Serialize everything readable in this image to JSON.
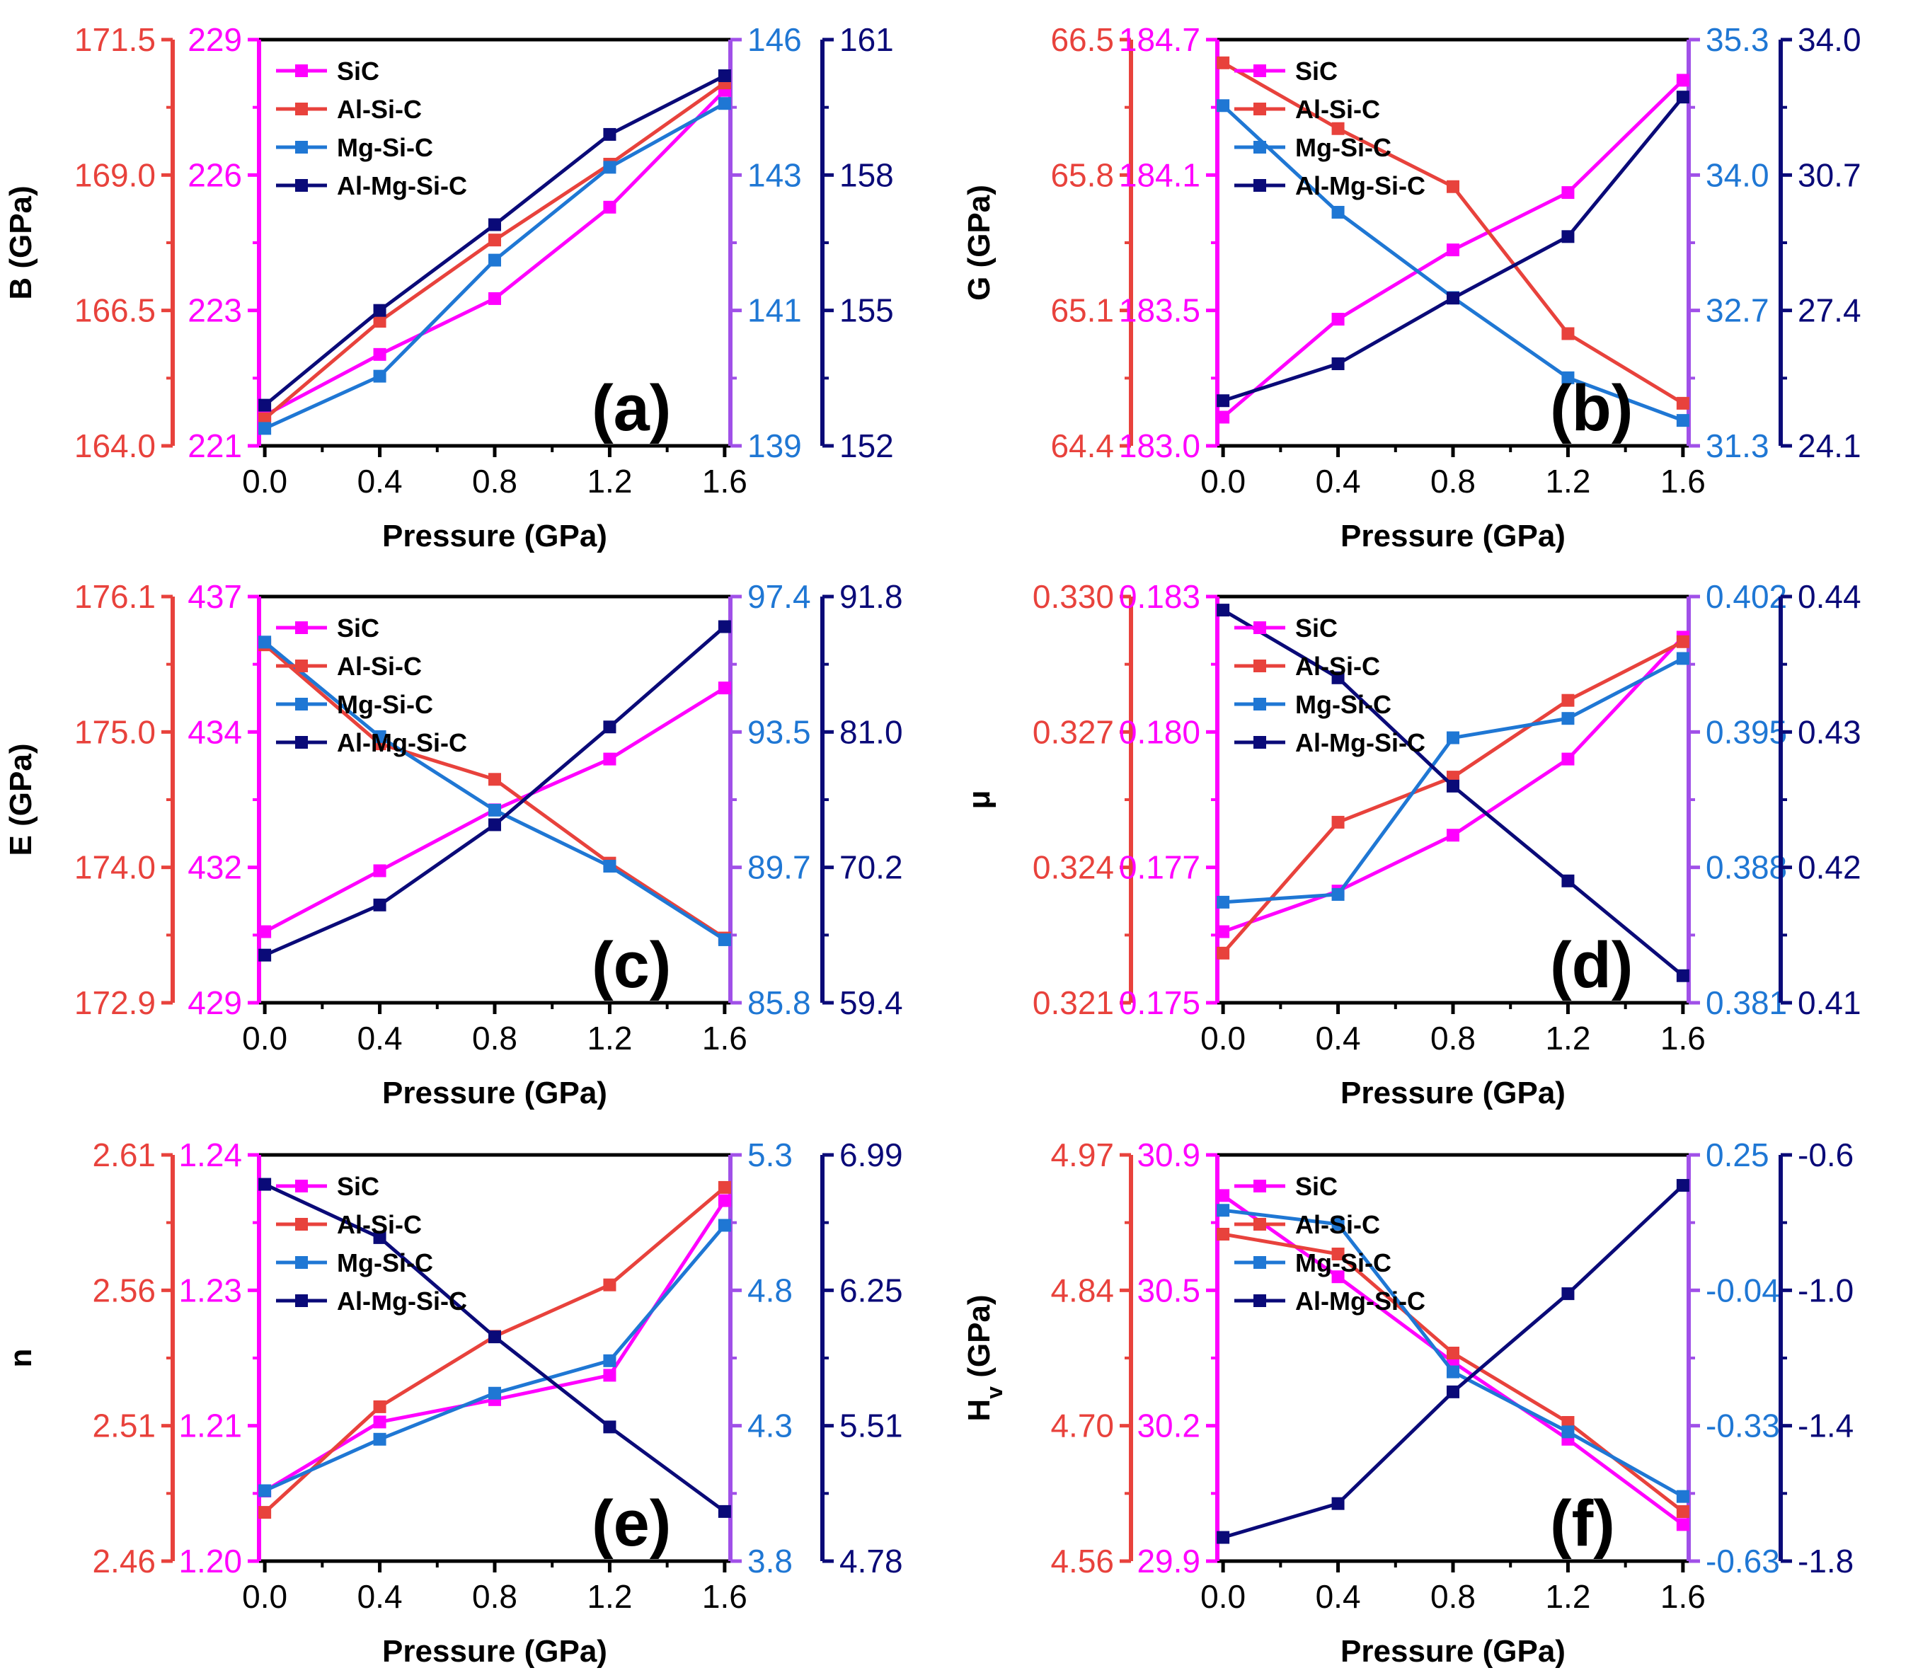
{
  "figure": {
    "colors": {
      "red": "#e8423c",
      "magenta": "#ff00ff",
      "blue": "#1f77d4",
      "navy": "#0a0a78",
      "purple": "#a050e8",
      "black": "#000000"
    },
    "pressure_values": [
      0.0,
      0.4,
      0.8,
      1.2,
      1.6
    ],
    "x_ticks": [
      "0.0",
      "0.4",
      "0.8",
      "1.2",
      "1.6"
    ],
    "x_label": "Pressure (GPa)",
    "legend_labels": [
      "SiC",
      "Al-Si-C",
      "Mg-Si-C",
      "Al-Mg-Si-C"
    ]
  },
  "chart_data": [
    {
      "type": "line",
      "panel": "(a)",
      "ylabel": "B (GPa)",
      "x": [
        0.0,
        0.4,
        0.8,
        1.2,
        1.6
      ],
      "axes": [
        {
          "series": "Al-Si-C",
          "color": "red",
          "range": [
            164.0,
            171.5
          ],
          "ticks": [
            "164.0",
            "166.5",
            "169.0",
            "171.5"
          ]
        },
        {
          "series": "SiC",
          "color": "magenta",
          "range": [
            221,
            229
          ],
          "ticks": [
            "221",
            "223",
            "226",
            "229"
          ]
        },
        {
          "series": "Mg-Si-C",
          "color": "blue",
          "range": [
            139,
            146
          ],
          "ticks": [
            "139",
            "141",
            "143",
            "146"
          ]
        },
        {
          "series": "Al-Mg-Si-C",
          "color": "navy",
          "range": [
            152,
            161
          ],
          "ticks": [
            "152",
            "155",
            "158",
            "161"
          ]
        }
      ],
      "series": [
        {
          "name": "SiC",
          "color": "magenta",
          "values": [
            221.6,
            222.8,
            223.9,
            225.7,
            228.0
          ]
        },
        {
          "name": "Al-Si-C",
          "color": "red",
          "values": [
            164.5,
            166.3,
            167.8,
            169.2,
            170.7
          ]
        },
        {
          "name": "Mg-Si-C",
          "color": "blue",
          "values": [
            139.3,
            140.2,
            142.2,
            143.8,
            144.9
          ]
        },
        {
          "name": "Al-Mg-Si-C",
          "color": "navy",
          "values": [
            152.9,
            155.0,
            156.9,
            158.9,
            160.2
          ]
        }
      ]
    },
    {
      "type": "line",
      "panel": "(b)",
      "ylabel": "G (GPa)",
      "x": [
        0.0,
        0.4,
        0.8,
        1.2,
        1.6
      ],
      "axes": [
        {
          "series": "Al-Si-C",
          "color": "red",
          "range": [
            64.4,
            66.5
          ],
          "ticks": [
            "64.4",
            "65.1",
            "65.8",
            "66.5"
          ]
        },
        {
          "series": "SiC",
          "color": "magenta",
          "range": [
            183.0,
            184.7
          ],
          "ticks": [
            "183.0",
            "183.5",
            "184.1",
            "184.7"
          ]
        },
        {
          "series": "Mg-Si-C",
          "color": "blue",
          "range": [
            31.3,
            35.3
          ],
          "ticks": [
            "31.3",
            "32.7",
            "34.0",
            "35.3"
          ]
        },
        {
          "series": "Al-Mg-Si-C",
          "color": "navy",
          "range": [
            24.1,
            34.0
          ],
          "ticks": [
            "24.1",
            "27.4",
            "30.7",
            "34.0"
          ]
        }
      ],
      "series": [
        {
          "name": "SiC",
          "color": "magenta",
          "values": [
            183.12,
            183.53,
            183.82,
            184.06,
            184.53
          ]
        },
        {
          "name": "Al-Si-C",
          "color": "red",
          "values": [
            66.38,
            66.04,
            65.74,
            64.98,
            64.62
          ]
        },
        {
          "name": "Mg-Si-C",
          "color": "blue",
          "values": [
            34.65,
            33.6,
            32.76,
            31.97,
            31.55
          ]
        },
        {
          "name": "Al-Mg-Si-C",
          "color": "navy",
          "values": [
            25.2,
            26.1,
            27.7,
            29.2,
            32.6
          ]
        }
      ]
    },
    {
      "type": "line",
      "panel": "(c)",
      "ylabel": "E (GPa)",
      "x": [
        0.0,
        0.4,
        0.8,
        1.2,
        1.6
      ],
      "axes": [
        {
          "series": "Al-Si-C",
          "color": "red",
          "range": [
            172.9,
            176.1
          ],
          "ticks": [
            "172.9",
            "174.0",
            "175.0",
            "176.1"
          ]
        },
        {
          "series": "SiC",
          "color": "magenta",
          "range": [
            429,
            437
          ],
          "ticks": [
            "429",
            "432",
            "434",
            "437"
          ]
        },
        {
          "series": "Mg-Si-C",
          "color": "blue",
          "range": [
            85.8,
            97.4
          ],
          "ticks": [
            "85.8",
            "89.7",
            "93.5",
            "97.4"
          ]
        },
        {
          "series": "Al-Mg-Si-C",
          "color": "navy",
          "range": [
            59.4,
            91.8
          ],
          "ticks": [
            "59.4",
            "70.2",
            "81.0",
            "91.8"
          ]
        }
      ],
      "series": [
        {
          "name": "SiC",
          "color": "magenta",
          "values": [
            430.4,
            431.6,
            432.8,
            433.8,
            435.2
          ]
        },
        {
          "name": "Al-Si-C",
          "color": "red",
          "values": [
            175.72,
            174.94,
            174.66,
            174.0,
            173.41
          ]
        },
        {
          "name": "Mg-Si-C",
          "color": "blue",
          "values": [
            96.1,
            93.4,
            91.3,
            89.7,
            87.6
          ]
        },
        {
          "name": "Al-Mg-Si-C",
          "color": "navy",
          "values": [
            63.2,
            67.2,
            73.6,
            81.4,
            89.4
          ]
        }
      ]
    },
    {
      "type": "line",
      "panel": "(d)",
      "ylabel": "μ",
      "x": [
        0.0,
        0.4,
        0.8,
        1.2,
        1.6
      ],
      "axes": [
        {
          "series": "Al-Si-C",
          "color": "red",
          "range": [
            0.321,
            0.33
          ],
          "ticks": [
            "0.321",
            "0.324",
            "0.327",
            "0.330"
          ]
        },
        {
          "series": "SiC",
          "color": "magenta",
          "range": [
            0.175,
            0.183
          ],
          "ticks": [
            "0.175",
            "0.177",
            "0.180",
            "0.183"
          ]
        },
        {
          "series": "Mg-Si-C",
          "color": "blue",
          "range": [
            0.381,
            0.402
          ],
          "ticks": [
            "0.381",
            "0.388",
            "0.395",
            "0.402"
          ]
        },
        {
          "series": "Al-Mg-Si-C",
          "color": "navy",
          "range": [
            0.41,
            0.44
          ],
          "ticks": [
            "0.41",
            "0.42",
            "0.43",
            "0.44"
          ]
        }
      ],
      "series": [
        {
          "name": "SiC",
          "color": "magenta",
          "values": [
            0.1764,
            0.1772,
            0.1783,
            0.1798,
            0.1822
          ]
        },
        {
          "name": "Al-Si-C",
          "color": "red",
          "values": [
            0.3221,
            0.325,
            0.326,
            0.3277,
            0.329
          ]
        },
        {
          "name": "Mg-Si-C",
          "color": "blue",
          "values": [
            0.3862,
            0.3866,
            0.3947,
            0.3957,
            0.3988
          ]
        },
        {
          "name": "Al-Mg-Si-C",
          "color": "navy",
          "values": [
            0.439,
            0.434,
            0.426,
            0.419,
            0.412
          ]
        }
      ]
    },
    {
      "type": "line",
      "panel": "(e)",
      "ylabel": "n",
      "x": [
        0.0,
        0.4,
        0.8,
        1.2,
        1.6
      ],
      "axes": [
        {
          "series": "Al-Si-C",
          "color": "red",
          "range": [
            2.46,
            2.61
          ],
          "ticks": [
            "2.46",
            "2.51",
            "2.56",
            "2.61"
          ]
        },
        {
          "series": "SiC",
          "color": "magenta",
          "range": [
            1.2,
            1.24
          ],
          "ticks": [
            "1.20",
            "1.21",
            "1.23",
            "1.24"
          ]
        },
        {
          "series": "Mg-Si-C",
          "color": "blue",
          "range": [
            3.8,
            5.3
          ],
          "ticks": [
            "3.8",
            "4.3",
            "4.8",
            "5.3"
          ]
        },
        {
          "series": "Al-Mg-Si-C",
          "color": "navy",
          "range": [
            4.78,
            6.99
          ],
          "ticks": [
            "4.78",
            "5.51",
            "6.25",
            "6.99"
          ]
        }
      ],
      "series": [
        {
          "name": "SiC",
          "color": "magenta",
          "values": [
            1.2069,
            1.2137,
            1.2159,
            1.2183,
            1.2355
          ]
        },
        {
          "name": "Al-Si-C",
          "color": "red",
          "values": [
            2.478,
            2.517,
            2.543,
            2.562,
            2.598
          ]
        },
        {
          "name": "Mg-Si-C",
          "color": "blue",
          "values": [
            4.06,
            4.25,
            4.42,
            4.54,
            5.04
          ]
        },
        {
          "name": "Al-Mg-Si-C",
          "color": "navy",
          "values": [
            6.83,
            6.54,
            6.0,
            5.51,
            5.05
          ]
        }
      ]
    },
    {
      "type": "line",
      "panel": "(f)",
      "ylabel": "Hv (GPa)",
      "ylabel_main": "H",
      "ylabel_sub": "v",
      "ylabel_unit": " (GPa)",
      "x": [
        0.0,
        0.4,
        0.8,
        1.2,
        1.6
      ],
      "axes": [
        {
          "series": "Al-Si-C",
          "color": "red",
          "range": [
            4.56,
            4.97
          ],
          "ticks": [
            "4.56",
            "4.70",
            "4.84",
            "4.97"
          ]
        },
        {
          "series": "SiC",
          "color": "magenta",
          "range": [
            29.9,
            30.9
          ],
          "ticks": [
            "29.9",
            "30.2",
            "30.5",
            "30.9"
          ]
        },
        {
          "series": "Mg-Si-C",
          "color": "blue",
          "range": [
            -0.63,
            0.25
          ],
          "ticks": [
            "-0.63",
            "-0.33",
            "-0.04",
            "0.25"
          ]
        },
        {
          "series": "Al-Mg-Si-C",
          "color": "navy",
          "range": [
            -1.8,
            -0.6
          ],
          "ticks": [
            "-1.8",
            "-1.4",
            "-1.0",
            "-0.6"
          ]
        }
      ],
      "series": [
        {
          "name": "SiC",
          "color": "magenta",
          "values": [
            30.8,
            30.6,
            30.39,
            30.2,
            29.99
          ]
        },
        {
          "name": "Al-Si-C",
          "color": "red",
          "values": [
            4.89,
            4.87,
            4.77,
            4.7,
            4.61
          ]
        },
        {
          "name": "Mg-Si-C",
          "color": "blue",
          "values": [
            0.13,
            0.1,
            -0.22,
            -0.35,
            -0.49
          ]
        },
        {
          "name": "Al-Mg-Si-C",
          "color": "navy",
          "values": [
            -1.73,
            -1.63,
            -1.3,
            -1.01,
            -0.69
          ]
        }
      ]
    }
  ]
}
